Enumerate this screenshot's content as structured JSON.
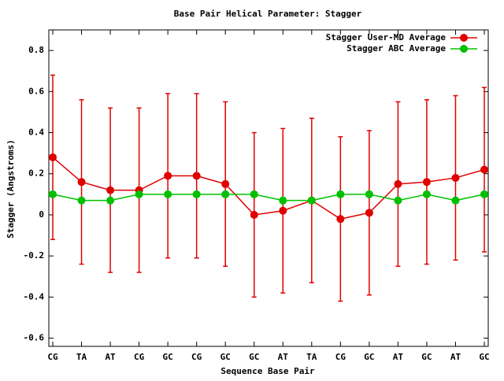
{
  "chart_data": {
    "type": "line",
    "title": "Base Pair Helical Parameter: Stagger",
    "x_label": "Sequence Base Pair",
    "y_label": "Stagger (Angstroms)",
    "categories": [
      "CG",
      "TA",
      "AT",
      "CG",
      "GC",
      "CG",
      "GC",
      "GC",
      "AT",
      "TA",
      "CG",
      "GC",
      "AT",
      "GC",
      "AT",
      "GC"
    ],
    "series": [
      {
        "name": "Stagger User-MD Average",
        "color": "#e00000",
        "values": [
          0.28,
          0.16,
          0.12,
          0.12,
          0.19,
          0.19,
          0.15,
          0.0,
          0.02,
          0.07,
          -0.02,
          0.01,
          0.15,
          0.16,
          0.18,
          0.22
        ],
        "errors": [
          0.4,
          0.4,
          0.4,
          0.4,
          0.4,
          0.4,
          0.4,
          0.4,
          0.4,
          0.4,
          0.4,
          0.4,
          0.4,
          0.4,
          0.4,
          0.4
        ]
      },
      {
        "name": "Stagger ABC Average",
        "color": "#00c000",
        "values": [
          0.1,
          0.07,
          0.07,
          0.1,
          0.1,
          0.1,
          0.1,
          0.1,
          0.07,
          0.07,
          0.1,
          0.1,
          0.07,
          0.1,
          0.07,
          0.1
        ]
      }
    ],
    "ylim": [
      -0.64,
      0.9
    ],
    "yticks": [
      -0.6,
      -0.4,
      -0.2,
      0,
      0.2,
      0.4,
      0.6,
      0.8
    ],
    "legend": "top-right"
  }
}
